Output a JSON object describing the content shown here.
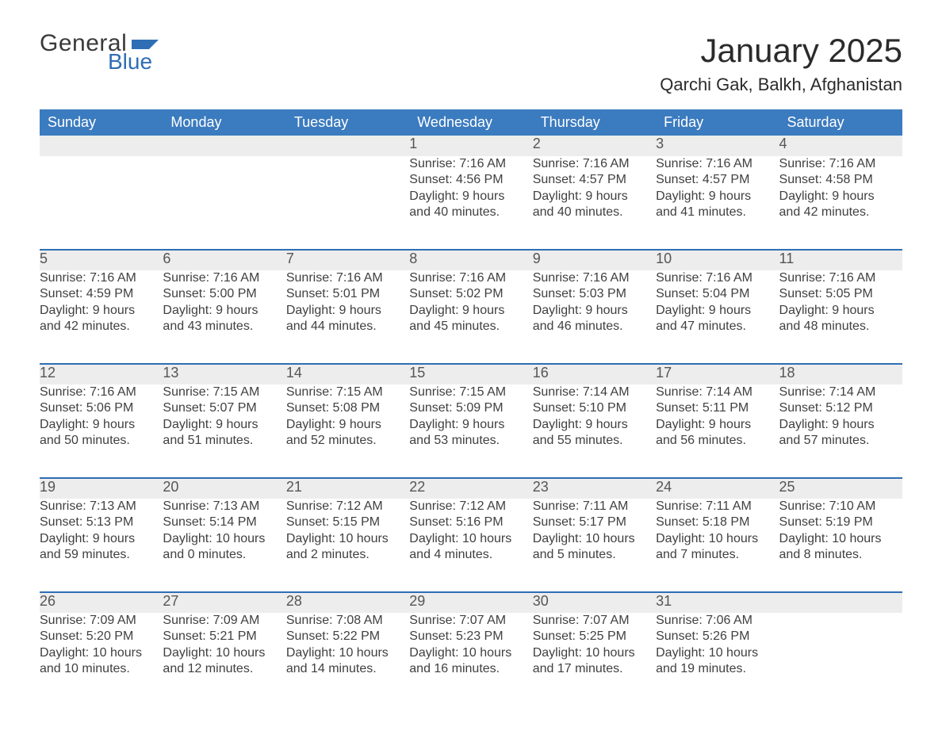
{
  "colors": {
    "header_blue": "#3b7bbf",
    "accent_blue": "#2f6eb5",
    "row_stripe": "#ededed",
    "text": "#333333",
    "background": "#ffffff"
  },
  "logo": {
    "line1": "General",
    "line2": "Blue"
  },
  "title": "January 2025",
  "location": "Qarchi Gak, Balkh, Afghanistan",
  "weekdays": [
    "Sunday",
    "Monday",
    "Tuesday",
    "Wednesday",
    "Thursday",
    "Friday",
    "Saturday"
  ],
  "weeks": [
    {
      "days": [
        {
          "num": "",
          "lines": [
            "",
            "",
            "",
            ""
          ]
        },
        {
          "num": "",
          "lines": [
            "",
            "",
            "",
            ""
          ]
        },
        {
          "num": "",
          "lines": [
            "",
            "",
            "",
            ""
          ]
        },
        {
          "num": "1",
          "lines": [
            "Sunrise: 7:16 AM",
            "Sunset: 4:56 PM",
            "Daylight: 9 hours",
            "and 40 minutes."
          ]
        },
        {
          "num": "2",
          "lines": [
            "Sunrise: 7:16 AM",
            "Sunset: 4:57 PM",
            "Daylight: 9 hours",
            "and 40 minutes."
          ]
        },
        {
          "num": "3",
          "lines": [
            "Sunrise: 7:16 AM",
            "Sunset: 4:57 PM",
            "Daylight: 9 hours",
            "and 41 minutes."
          ]
        },
        {
          "num": "4",
          "lines": [
            "Sunrise: 7:16 AM",
            "Sunset: 4:58 PM",
            "Daylight: 9 hours",
            "and 42 minutes."
          ]
        }
      ]
    },
    {
      "days": [
        {
          "num": "5",
          "lines": [
            "Sunrise: 7:16 AM",
            "Sunset: 4:59 PM",
            "Daylight: 9 hours",
            "and 42 minutes."
          ]
        },
        {
          "num": "6",
          "lines": [
            "Sunrise: 7:16 AM",
            "Sunset: 5:00 PM",
            "Daylight: 9 hours",
            "and 43 minutes."
          ]
        },
        {
          "num": "7",
          "lines": [
            "Sunrise: 7:16 AM",
            "Sunset: 5:01 PM",
            "Daylight: 9 hours",
            "and 44 minutes."
          ]
        },
        {
          "num": "8",
          "lines": [
            "Sunrise: 7:16 AM",
            "Sunset: 5:02 PM",
            "Daylight: 9 hours",
            "and 45 minutes."
          ]
        },
        {
          "num": "9",
          "lines": [
            "Sunrise: 7:16 AM",
            "Sunset: 5:03 PM",
            "Daylight: 9 hours",
            "and 46 minutes."
          ]
        },
        {
          "num": "10",
          "lines": [
            "Sunrise: 7:16 AM",
            "Sunset: 5:04 PM",
            "Daylight: 9 hours",
            "and 47 minutes."
          ]
        },
        {
          "num": "11",
          "lines": [
            "Sunrise: 7:16 AM",
            "Sunset: 5:05 PM",
            "Daylight: 9 hours",
            "and 48 minutes."
          ]
        }
      ]
    },
    {
      "days": [
        {
          "num": "12",
          "lines": [
            "Sunrise: 7:16 AM",
            "Sunset: 5:06 PM",
            "Daylight: 9 hours",
            "and 50 minutes."
          ]
        },
        {
          "num": "13",
          "lines": [
            "Sunrise: 7:15 AM",
            "Sunset: 5:07 PM",
            "Daylight: 9 hours",
            "and 51 minutes."
          ]
        },
        {
          "num": "14",
          "lines": [
            "Sunrise: 7:15 AM",
            "Sunset: 5:08 PM",
            "Daylight: 9 hours",
            "and 52 minutes."
          ]
        },
        {
          "num": "15",
          "lines": [
            "Sunrise: 7:15 AM",
            "Sunset: 5:09 PM",
            "Daylight: 9 hours",
            "and 53 minutes."
          ]
        },
        {
          "num": "16",
          "lines": [
            "Sunrise: 7:14 AM",
            "Sunset: 5:10 PM",
            "Daylight: 9 hours",
            "and 55 minutes."
          ]
        },
        {
          "num": "17",
          "lines": [
            "Sunrise: 7:14 AM",
            "Sunset: 5:11 PM",
            "Daylight: 9 hours",
            "and 56 minutes."
          ]
        },
        {
          "num": "18",
          "lines": [
            "Sunrise: 7:14 AM",
            "Sunset: 5:12 PM",
            "Daylight: 9 hours",
            "and 57 minutes."
          ]
        }
      ]
    },
    {
      "days": [
        {
          "num": "19",
          "lines": [
            "Sunrise: 7:13 AM",
            "Sunset: 5:13 PM",
            "Daylight: 9 hours",
            "and 59 minutes."
          ]
        },
        {
          "num": "20",
          "lines": [
            "Sunrise: 7:13 AM",
            "Sunset: 5:14 PM",
            "Daylight: 10 hours",
            "and 0 minutes."
          ]
        },
        {
          "num": "21",
          "lines": [
            "Sunrise: 7:12 AM",
            "Sunset: 5:15 PM",
            "Daylight: 10 hours",
            "and 2 minutes."
          ]
        },
        {
          "num": "22",
          "lines": [
            "Sunrise: 7:12 AM",
            "Sunset: 5:16 PM",
            "Daylight: 10 hours",
            "and 4 minutes."
          ]
        },
        {
          "num": "23",
          "lines": [
            "Sunrise: 7:11 AM",
            "Sunset: 5:17 PM",
            "Daylight: 10 hours",
            "and 5 minutes."
          ]
        },
        {
          "num": "24",
          "lines": [
            "Sunrise: 7:11 AM",
            "Sunset: 5:18 PM",
            "Daylight: 10 hours",
            "and 7 minutes."
          ]
        },
        {
          "num": "25",
          "lines": [
            "Sunrise: 7:10 AM",
            "Sunset: 5:19 PM",
            "Daylight: 10 hours",
            "and 8 minutes."
          ]
        }
      ]
    },
    {
      "days": [
        {
          "num": "26",
          "lines": [
            "Sunrise: 7:09 AM",
            "Sunset: 5:20 PM",
            "Daylight: 10 hours",
            "and 10 minutes."
          ]
        },
        {
          "num": "27",
          "lines": [
            "Sunrise: 7:09 AM",
            "Sunset: 5:21 PM",
            "Daylight: 10 hours",
            "and 12 minutes."
          ]
        },
        {
          "num": "28",
          "lines": [
            "Sunrise: 7:08 AM",
            "Sunset: 5:22 PM",
            "Daylight: 10 hours",
            "and 14 minutes."
          ]
        },
        {
          "num": "29",
          "lines": [
            "Sunrise: 7:07 AM",
            "Sunset: 5:23 PM",
            "Daylight: 10 hours",
            "and 16 minutes."
          ]
        },
        {
          "num": "30",
          "lines": [
            "Sunrise: 7:07 AM",
            "Sunset: 5:25 PM",
            "Daylight: 10 hours",
            "and 17 minutes."
          ]
        },
        {
          "num": "31",
          "lines": [
            "Sunrise: 7:06 AM",
            "Sunset: 5:26 PM",
            "Daylight: 10 hours",
            "and 19 minutes."
          ]
        },
        {
          "num": "",
          "lines": [
            "",
            "",
            "",
            ""
          ]
        }
      ]
    }
  ]
}
